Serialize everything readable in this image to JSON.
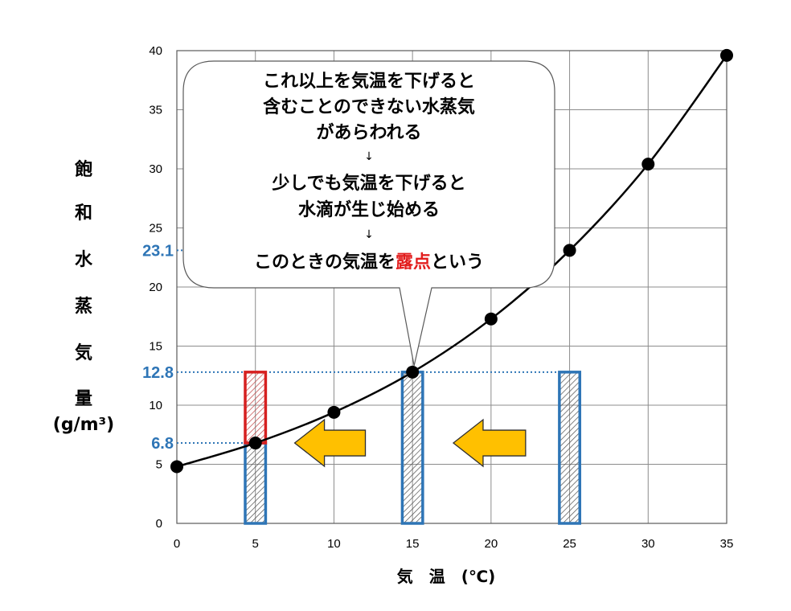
{
  "chart_data": {
    "type": "line",
    "xlabel": "気　温　(℃)",
    "ylabel_chars": [
      "飽",
      "和",
      "水",
      "蒸",
      "気",
      "量"
    ],
    "ylabel_unit": "(g/m³)",
    "xlim": [
      0,
      35
    ],
    "ylim": [
      0,
      40
    ],
    "x_ticks": [
      0,
      5,
      10,
      15,
      20,
      25,
      30,
      35
    ],
    "y_ticks": [
      0,
      5,
      10,
      15,
      20,
      25,
      30,
      35,
      40
    ],
    "grid": true,
    "series": [
      {
        "x": [
          0,
          5,
          10,
          15,
          20,
          25,
          30,
          35
        ],
        "y": [
          4.8,
          6.8,
          9.4,
          12.8,
          17.3,
          23.1,
          30.4,
          39.6
        ]
      }
    ],
    "reference_labels": [
      {
        "text": "23.1",
        "y": 23.1
      },
      {
        "text": "12.8",
        "y": 12.8
      },
      {
        "text": "6.8",
        "y": 6.8
      }
    ],
    "bars": [
      {
        "x": 5,
        "y0": 0,
        "y1": 6.8,
        "color": "#2e75b6"
      },
      {
        "x": 5,
        "y0": 6.8,
        "y1": 12.8,
        "color": "#d62020"
      },
      {
        "x": 15,
        "y0": 0,
        "y1": 12.8,
        "color": "#2e75b6"
      },
      {
        "x": 25,
        "y0": 0,
        "y1": 12.8,
        "color": "#2e75b6"
      }
    ],
    "arrows": [
      {
        "from_x": 12,
        "to_x": 7.5,
        "y": 6.8,
        "color": "#ffc000"
      },
      {
        "from_x": 22.2,
        "to_x": 17.6,
        "y": 6.8,
        "color": "#ffc000"
      }
    ],
    "callout": {
      "lines": [
        "これ以上を気温を下げると",
        "含むことのできない水蒸気",
        "があらわれる",
        "↓",
        "少しでも気温を下げると",
        "水滴が生じ始める",
        "↓"
      ],
      "last_line_pre": "このときの気温を",
      "last_line_highlight": "露点",
      "last_line_post": "という",
      "highlight_color": "#e21e1e",
      "point_x": 15,
      "point_y": 12.8
    }
  }
}
